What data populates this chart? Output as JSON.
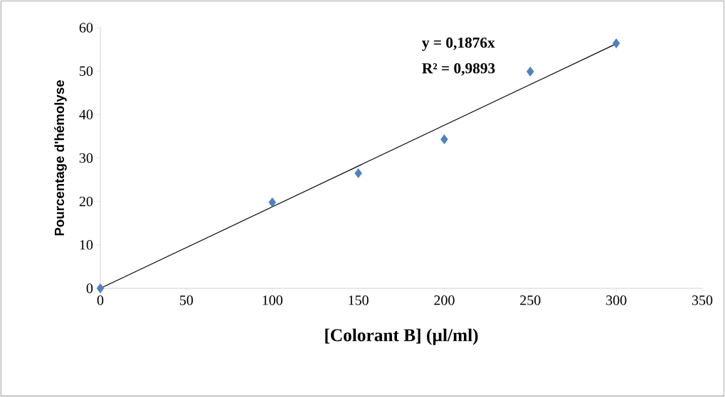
{
  "chart_data": {
    "type": "scatter",
    "xlabel": "[Colorant B] (µl/ml)",
    "ylabel": "Pourcentage d'hémolyse",
    "annotations": [
      "**y = 0,1876x**",
      "**R² = 0,9893**"
    ],
    "series": [
      {
        "color": "#4f81bd",
        "x": [
          0,
          100,
          150,
          200,
          250,
          300
        ],
        "values": [
          0,
          19.8,
          26.5,
          34.3,
          49.9,
          56.4
        ],
        "marker": "diamond"
      },
      {
        "type": "line",
        "color": "#000000",
        "x": [
          0,
          300
        ],
        "values": [
          0,
          56.3
        ],
        "marker": "none",
        "line_style": "solid"
      }
    ],
    "xlim": [
      0,
      350
    ],
    "xticks": [
      0,
      50,
      100,
      150,
      200,
      250,
      300,
      350
    ],
    "ylim": [
      0,
      60
    ],
    "yticks": [
      0,
      10,
      20,
      30,
      40,
      50,
      60
    ],
    "grid": false
  }
}
